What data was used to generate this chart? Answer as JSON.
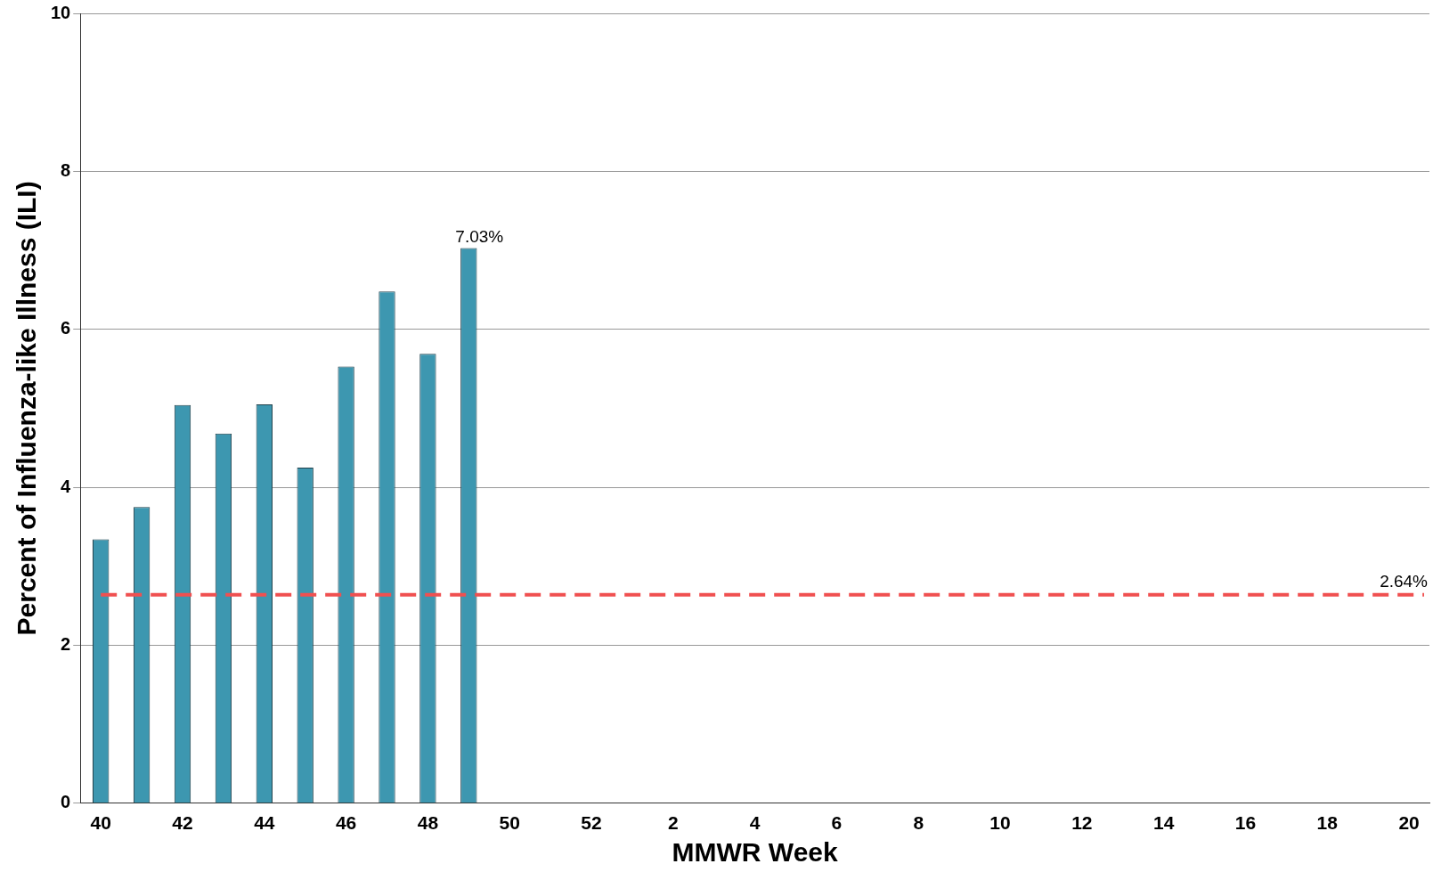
{
  "chart_data": {
    "type": "bar",
    "xlabel": "MMWR Week",
    "ylabel": "Percent of Influenza-like Illness (ILI)",
    "categories": [
      "40",
      null,
      "42",
      null,
      "44",
      null,
      "46",
      null,
      "48",
      null,
      "50",
      null,
      "52",
      null,
      "2",
      null,
      "4",
      null,
      "6",
      null,
      "8",
      null,
      "10",
      null,
      "12",
      null,
      "14",
      null,
      "16",
      null,
      "18",
      null,
      "20"
    ],
    "values": [
      3.34,
      3.75,
      5.04,
      4.68,
      5.05,
      4.25,
      5.53,
      6.48,
      5.69,
      7.03,
      null,
      null,
      null,
      null,
      null,
      null,
      null,
      null,
      null,
      null,
      null,
      null,
      null,
      null,
      null,
      null,
      null,
      null,
      null,
      null,
      null,
      null,
      null
    ],
    "value_labels": [
      null,
      null,
      null,
      null,
      null,
      null,
      null,
      null,
      null,
      "7.03%",
      null,
      null,
      null,
      null,
      null,
      null,
      null,
      null,
      null,
      null,
      null,
      null,
      null,
      null,
      null,
      null,
      null,
      null,
      null,
      null,
      null,
      null,
      null
    ],
    "color": "#3d97b0",
    "ylim": [
      0,
      10
    ],
    "yticks": [
      0,
      2,
      4,
      6,
      8,
      10
    ],
    "grid": "y",
    "ref_lines": [
      {
        "axis": "y",
        "value": 2.64,
        "label": "2.64%",
        "color": "#f05050",
        "line_style": "dashed"
      }
    ]
  }
}
